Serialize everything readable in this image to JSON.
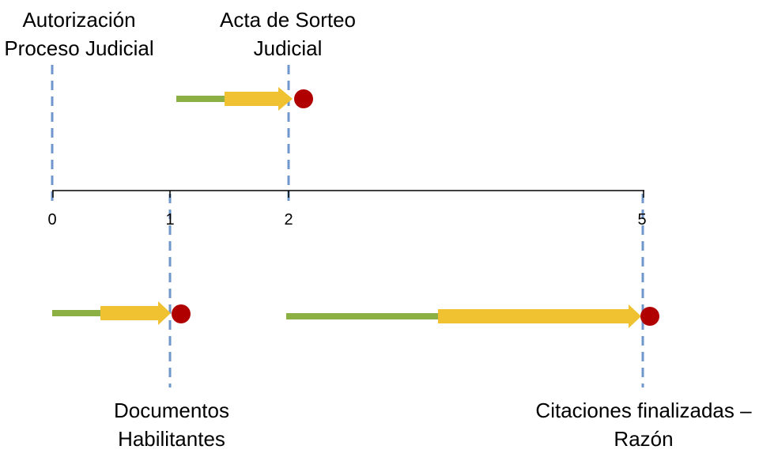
{
  "timeline": {
    "ticks": [
      {
        "value": 0,
        "label": "0"
      },
      {
        "value": 1,
        "label": "1"
      },
      {
        "value": 2,
        "label": "2"
      },
      {
        "value": 5,
        "label": "5"
      }
    ]
  },
  "milestones": {
    "autorizacion": {
      "line1": "Autorización",
      "line2": "Proceso Judicial",
      "value": 0
    },
    "acta": {
      "line1": "Acta de Sorteo",
      "line2": "Judicial",
      "value": 2
    },
    "documentos": {
      "line1": "Documentos",
      "line2": "Habilitantes",
      "value": 1
    },
    "citaciones": {
      "line1": "Citaciones finalizadas –",
      "line2": "Razón",
      "value": 5
    }
  },
  "colors": {
    "green": "#8cb043",
    "yellow": "#f0c232",
    "red": "#b00000",
    "dash": "#6f97cc",
    "axis": "#000000"
  }
}
